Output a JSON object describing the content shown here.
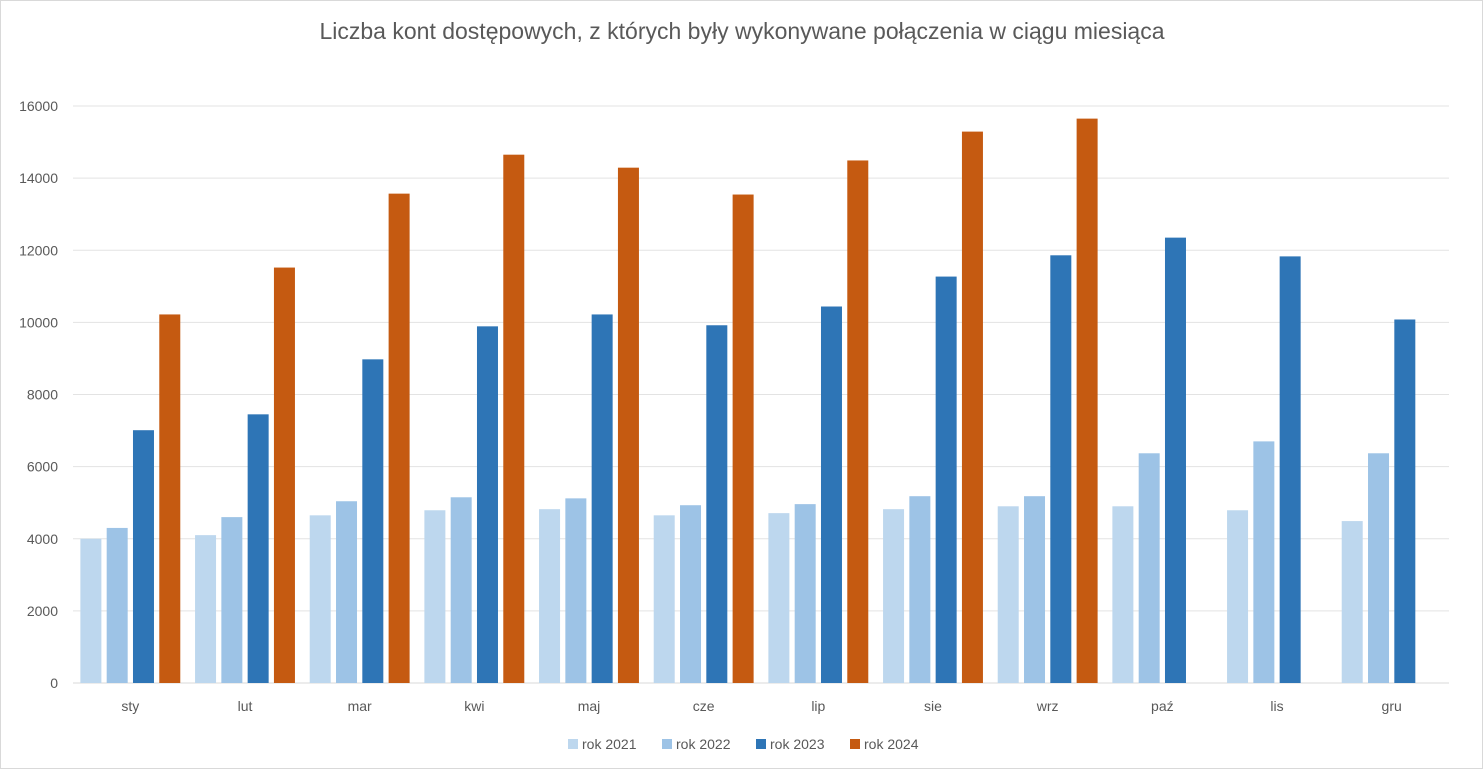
{
  "chart_data": {
    "type": "bar",
    "title": "Liczba kont dostępowych, z których były wykonywane połączenia w ciągu miesiąca",
    "xlabel": "",
    "ylabel": "",
    "ylim": [
      0,
      16000
    ],
    "yticks": [
      "0",
      "2000",
      "4000",
      "6000",
      "8000",
      "10000",
      "12000",
      "14000",
      "16000"
    ],
    "grid": true,
    "legend_position": "bottom",
    "categories": [
      "sty",
      "lut",
      "mar",
      "kwi",
      "maj",
      "cze",
      "lip",
      "sie",
      "wrz",
      "paź",
      "lis",
      "gru"
    ],
    "series": [
      {
        "name": "rok 2021",
        "color": "#BDD7EE",
        "values": [
          4000,
          4100,
          4650,
          4790,
          4820,
          4650,
          4710,
          4820,
          4900,
          4900,
          4790,
          4490
        ]
      },
      {
        "name": "rok 2022",
        "color": "#9DC3E6",
        "values": [
          4300,
          4600,
          5040,
          5150,
          5120,
          4930,
          4960,
          5180,
          5180,
          6370,
          6700,
          6370
        ]
      },
      {
        "name": "rok 2023",
        "color": "#2E75B6",
        "values": [
          7010,
          7450,
          8975,
          9890,
          10220,
          9920,
          10440,
          11270,
          11860,
          12350,
          11830,
          10080
        ]
      },
      {
        "name": "rok 2024",
        "color": "#C55A11",
        "values": [
          10220,
          11520,
          13570,
          14650,
          14290,
          13545,
          14490,
          15290,
          15650,
          null,
          null,
          null
        ]
      }
    ]
  }
}
